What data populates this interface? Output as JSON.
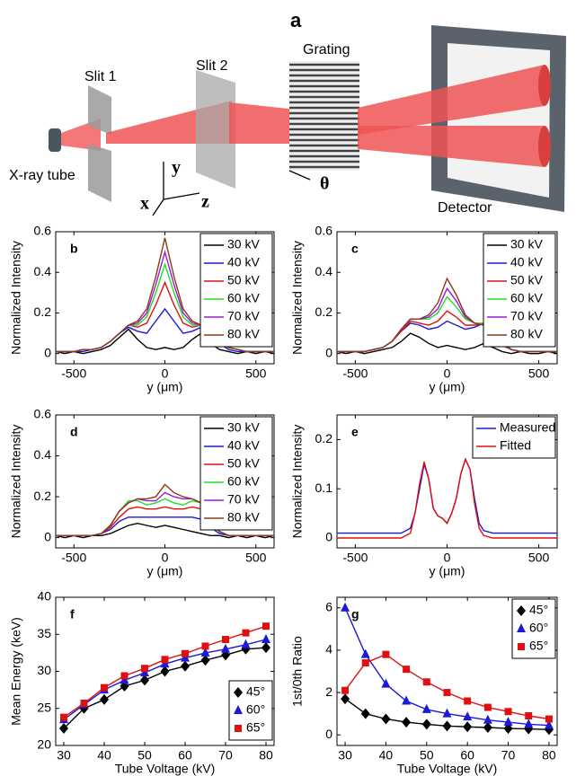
{
  "diagram": {
    "label": "a",
    "slit1": "Slit 1",
    "slit2": "Slit 2",
    "grating": "Grating",
    "tube": "X-ray tube",
    "detector": "Detector",
    "x": "x",
    "y": "y",
    "z": "z",
    "theta": "θ"
  },
  "chart_data": [
    {
      "type": "line",
      "label": "b",
      "xlabel": "y (μm)",
      "ylabel": "Normalized Intensity",
      "legend": "upper right",
      "xlim": [
        -600,
        600
      ],
      "xticks": [
        -500,
        0,
        500
      ],
      "ylim": [
        -0.05,
        0.6
      ],
      "yticks": [
        0,
        0.2,
        0.4,
        0.6
      ],
      "x": [
        -600,
        -550,
        -500,
        -450,
        -400,
        -350,
        -300,
        -250,
        -200,
        -150,
        -100,
        -50,
        0,
        50,
        100,
        150,
        200,
        250,
        300,
        350,
        400,
        450,
        500,
        550,
        600
      ],
      "series": [
        {
          "name": "30 kV",
          "color": "#000000",
          "values": [
            0.01,
            0,
            0.01,
            0,
            0.01,
            0.02,
            0.04,
            0.08,
            0.12,
            0.07,
            0.03,
            0.02,
            0.03,
            0.02,
            0.03,
            0.07,
            0.1,
            0.05,
            0.02,
            0.01,
            0,
            0.01,
            0,
            0.01,
            0
          ]
        },
        {
          "name": "40 kV",
          "color": "#1a1ad6",
          "values": [
            0.01,
            0.01,
            0.01,
            0.01,
            0.02,
            0.03,
            0.06,
            0.1,
            0.13,
            0.11,
            0.1,
            0.16,
            0.22,
            0.16,
            0.1,
            0.11,
            0.13,
            0.09,
            0.05,
            0.02,
            0.01,
            0.01,
            0.01,
            0.01,
            0.01
          ]
        },
        {
          "name": "50 kV",
          "color": "#e01010",
          "values": [
            0.01,
            0.01,
            0.01,
            0.02,
            0.02,
            0.03,
            0.06,
            0.1,
            0.14,
            0.13,
            0.15,
            0.24,
            0.35,
            0.24,
            0.15,
            0.13,
            0.14,
            0.1,
            0.06,
            0.03,
            0.02,
            0.01,
            0.01,
            0.01,
            0.01
          ]
        },
        {
          "name": "60 kV",
          "color": "#20e020",
          "values": [
            0.01,
            0.01,
            0.01,
            0.02,
            0.02,
            0.03,
            0.06,
            0.1,
            0.14,
            0.14,
            0.18,
            0.3,
            0.44,
            0.3,
            0.18,
            0.14,
            0.14,
            0.1,
            0.06,
            0.03,
            0.02,
            0.01,
            0.01,
            0.01,
            0.01
          ]
        },
        {
          "name": "70 kV",
          "color": "#9a1ad6",
          "values": [
            0.01,
            0.01,
            0.01,
            0.02,
            0.02,
            0.03,
            0.06,
            0.1,
            0.14,
            0.15,
            0.2,
            0.34,
            0.5,
            0.34,
            0.2,
            0.15,
            0.14,
            0.1,
            0.06,
            0.03,
            0.02,
            0.01,
            0.01,
            0.01,
            0.01
          ]
        },
        {
          "name": "80 kV",
          "color": "#8b3a1a",
          "values": [
            0.01,
            0.01,
            0.01,
            0.02,
            0.02,
            0.03,
            0.06,
            0.1,
            0.14,
            0.16,
            0.22,
            0.38,
            0.57,
            0.38,
            0.22,
            0.16,
            0.14,
            0.1,
            0.06,
            0.03,
            0.02,
            0.01,
            0.01,
            0.01,
            0.01
          ]
        }
      ]
    },
    {
      "type": "line",
      "label": "c",
      "xlabel": "y (μm)",
      "ylabel": "Normalized Intensity",
      "legend": "upper right",
      "xlim": [
        -600,
        600
      ],
      "xticks": [
        -500,
        0,
        500
      ],
      "ylim": [
        -0.05,
        0.6
      ],
      "yticks": [
        0,
        0.2,
        0.4,
        0.6
      ],
      "x": [
        -600,
        -550,
        -500,
        -450,
        -400,
        -350,
        -300,
        -250,
        -200,
        -150,
        -100,
        -50,
        0,
        50,
        100,
        150,
        200,
        250,
        300,
        350,
        400,
        450,
        500,
        550,
        600
      ],
      "series": [
        {
          "name": "30 kV",
          "color": "#000000",
          "values": [
            0.01,
            0,
            0.01,
            0,
            0.01,
            0.02,
            0.03,
            0.06,
            0.1,
            0.08,
            0.05,
            0.03,
            0.04,
            0.03,
            0.02,
            0.03,
            0.05,
            0.03,
            0.01,
            0,
            0.01,
            0,
            0,
            0.01,
            0
          ]
        },
        {
          "name": "40 kV",
          "color": "#1a1ad6",
          "values": [
            0.01,
            0.01,
            0.01,
            0.01,
            0.02,
            0.03,
            0.06,
            0.11,
            0.15,
            0.14,
            0.12,
            0.13,
            0.16,
            0.14,
            0.12,
            0.13,
            0.15,
            0.12,
            0.06,
            0.02,
            0.01,
            0.01,
            0.01,
            0.01,
            0.01
          ]
        },
        {
          "name": "50 kV",
          "color": "#e01010",
          "values": [
            0.01,
            0.01,
            0.01,
            0.01,
            0.02,
            0.03,
            0.06,
            0.11,
            0.16,
            0.15,
            0.14,
            0.16,
            0.21,
            0.18,
            0.14,
            0.14,
            0.15,
            0.11,
            0.05,
            0.02,
            0.01,
            0.01,
            0.01,
            0.01,
            0.01
          ]
        },
        {
          "name": "60 kV",
          "color": "#20e020",
          "values": [
            0.01,
            0.01,
            0.01,
            0.01,
            0.02,
            0.03,
            0.06,
            0.12,
            0.17,
            0.17,
            0.17,
            0.2,
            0.28,
            0.23,
            0.17,
            0.15,
            0.15,
            0.1,
            0.05,
            0.02,
            0.01,
            0.01,
            0.01,
            0.01,
            0.01
          ]
        },
        {
          "name": "70 kV",
          "color": "#9a1ad6",
          "values": [
            0.01,
            0.01,
            0.01,
            0.01,
            0.02,
            0.03,
            0.06,
            0.12,
            0.17,
            0.17,
            0.18,
            0.22,
            0.32,
            0.26,
            0.18,
            0.15,
            0.14,
            0.1,
            0.05,
            0.02,
            0.01,
            0.01,
            0.01,
            0.01,
            0.01
          ]
        },
        {
          "name": "80 kV",
          "color": "#8b3a1a",
          "values": [
            0.01,
            0.01,
            0.01,
            0.01,
            0.02,
            0.03,
            0.06,
            0.12,
            0.17,
            0.17,
            0.19,
            0.25,
            0.37,
            0.29,
            0.19,
            0.15,
            0.14,
            0.09,
            0.04,
            0.02,
            0.01,
            0.01,
            0.01,
            0.01,
            0.01
          ]
        }
      ]
    },
    {
      "type": "line",
      "label": "d",
      "xlabel": "y (μm)",
      "ylabel": "Normalized Intensity",
      "legend": "upper right",
      "xlim": [
        -600,
        600
      ],
      "xticks": [
        -500,
        0,
        500
      ],
      "ylim": [
        -0.05,
        0.6
      ],
      "yticks": [
        0,
        0.2,
        0.4,
        0.6
      ],
      "x": [
        -600,
        -550,
        -500,
        -450,
        -400,
        -350,
        -300,
        -250,
        -200,
        -150,
        -100,
        -50,
        0,
        50,
        100,
        150,
        200,
        250,
        300,
        350,
        400,
        450,
        500,
        550,
        600
      ],
      "series": [
        {
          "name": "30 kV",
          "color": "#000000",
          "values": [
            0.01,
            0,
            0.01,
            0,
            0.01,
            0.01,
            0.02,
            0.04,
            0.06,
            0.07,
            0.06,
            0.05,
            0.06,
            0.05,
            0.04,
            0.03,
            0.02,
            0.01,
            0.01,
            0,
            0.01,
            0,
            0.01,
            0,
            0.01
          ]
        },
        {
          "name": "40 kV",
          "color": "#1a1ad6",
          "values": [
            0.01,
            0.01,
            0.01,
            0.01,
            0.01,
            0.02,
            0.04,
            0.08,
            0.1,
            0.1,
            0.1,
            0.1,
            0.1,
            0.1,
            0.1,
            0.1,
            0.09,
            0.05,
            0.02,
            0.01,
            0.01,
            0.01,
            0.01,
            0.01,
            0.01
          ]
        },
        {
          "name": "50 kV",
          "color": "#e01010",
          "values": [
            0.01,
            0.01,
            0.01,
            0.01,
            0.01,
            0.02,
            0.05,
            0.1,
            0.14,
            0.15,
            0.14,
            0.14,
            0.15,
            0.14,
            0.14,
            0.15,
            0.14,
            0.07,
            0.03,
            0.01,
            0.01,
            0.01,
            0.01,
            0.01,
            0.01
          ]
        },
        {
          "name": "60 kV",
          "color": "#20e020",
          "values": [
            0.01,
            0.01,
            0.01,
            0.01,
            0.01,
            0.02,
            0.06,
            0.13,
            0.18,
            0.18,
            0.16,
            0.17,
            0.19,
            0.17,
            0.16,
            0.18,
            0.17,
            0.08,
            0.03,
            0.01,
            0.01,
            0.01,
            0.01,
            0.01,
            0.01
          ]
        },
        {
          "name": "70 kV",
          "color": "#9a1ad6",
          "values": [
            0.01,
            0.01,
            0.01,
            0.01,
            0.01,
            0.02,
            0.06,
            0.13,
            0.17,
            0.19,
            0.18,
            0.18,
            0.22,
            0.2,
            0.19,
            0.19,
            0.17,
            0.08,
            0.03,
            0.01,
            0.01,
            0.01,
            0.01,
            0.01,
            0.01
          ]
        },
        {
          "name": "80 kV",
          "color": "#8b3a1a",
          "values": [
            0.01,
            0.01,
            0.01,
            0.01,
            0.01,
            0.02,
            0.06,
            0.13,
            0.17,
            0.19,
            0.19,
            0.2,
            0.26,
            0.22,
            0.2,
            0.19,
            0.17,
            0.08,
            0.03,
            0.01,
            0.01,
            0.01,
            0.01,
            0.01,
            0.01
          ]
        }
      ]
    },
    {
      "type": "line",
      "label": "e",
      "xlabel": "y (μm)",
      "ylabel": "Normalized Intensity",
      "legend": "upper right",
      "xlim": [
        -600,
        600
      ],
      "xticks": [
        -500,
        0,
        500
      ],
      "ylim": [
        -0.02,
        0.25
      ],
      "yticks": [
        0,
        0.1,
        0.2
      ],
      "x": [
        -600,
        -500,
        -400,
        -300,
        -250,
        -200,
        -175,
        -150,
        -125,
        -100,
        -75,
        -50,
        -25,
        0,
        25,
        50,
        75,
        100,
        125,
        150,
        175,
        200,
        250,
        300,
        400,
        500,
        600
      ],
      "series": [
        {
          "name": "Measured",
          "color": "#1a1ad6",
          "values": [
            0.01,
            0.01,
            0.01,
            0.01,
            0.01,
            0.02,
            0.05,
            0.1,
            0.15,
            0.12,
            0.06,
            0.045,
            0.04,
            0.03,
            0.05,
            0.08,
            0.13,
            0.16,
            0.14,
            0.08,
            0.03,
            0.015,
            0.01,
            0.01,
            0.01,
            0.01,
            0.01
          ]
        },
        {
          "name": "Fitted",
          "color": "#e01010",
          "values": [
            0,
            0,
            0,
            0,
            0,
            0.01,
            0.05,
            0.11,
            0.155,
            0.12,
            0.06,
            0.045,
            0.04,
            0.03,
            0.05,
            0.08,
            0.13,
            0.16,
            0.14,
            0.07,
            0.02,
            0.005,
            0,
            0,
            0,
            0,
            0
          ]
        }
      ]
    },
    {
      "type": "marker-line",
      "label": "f",
      "xlabel": "Tube Voltage (kV)",
      "ylabel": "Mean Energy (keV)",
      "legend": "lower right",
      "xlim": [
        28,
        82
      ],
      "xticks": [
        30,
        40,
        50,
        60,
        70,
        80
      ],
      "ylim": [
        20,
        40
      ],
      "yticks": [
        20,
        25,
        30,
        35,
        40
      ],
      "x": [
        30,
        35,
        40,
        45,
        50,
        55,
        60,
        65,
        70,
        75,
        80
      ],
      "series": [
        {
          "name": "45°",
          "color": "#000000",
          "marker": "diamond",
          "values": [
            22.3,
            25,
            26.2,
            28,
            28.8,
            30,
            30.7,
            31.5,
            32.2,
            33,
            33.2
          ]
        },
        {
          "name": "60°",
          "color": "#1a1ad6",
          "marker": "triangle",
          "values": [
            23.5,
            25.5,
            27.5,
            28.8,
            29.8,
            31,
            31.8,
            32.5,
            33,
            33.6,
            34.3
          ]
        },
        {
          "name": "65°",
          "color": "#e01010",
          "marker": "square",
          "values": [
            23.8,
            25.7,
            27.8,
            29.4,
            30.4,
            31.6,
            32.4,
            33.4,
            34.3,
            35.2,
            36.1
          ]
        }
      ]
    },
    {
      "type": "marker-line",
      "label": "g",
      "xlabel": "Tube Voltage (kV)",
      "ylabel": "1st/0th Ratio",
      "legend": "upper right",
      "xlim": [
        28,
        82
      ],
      "xticks": [
        30,
        40,
        50,
        60,
        70,
        80
      ],
      "ylim": [
        -0.5,
        6.5
      ],
      "yticks": [
        0,
        2,
        4,
        6
      ],
      "x": [
        30,
        35,
        40,
        45,
        50,
        55,
        60,
        65,
        70,
        75,
        80
      ],
      "series": [
        {
          "name": "45°",
          "color": "#000000",
          "marker": "diamond",
          "values": [
            1.7,
            1,
            0.75,
            0.6,
            0.5,
            0.42,
            0.38,
            0.35,
            0.3,
            0.28,
            0.25
          ]
        },
        {
          "name": "60°",
          "color": "#1a1ad6",
          "marker": "triangle",
          "values": [
            6,
            3.8,
            2.4,
            1.6,
            1.2,
            1,
            0.85,
            0.7,
            0.6,
            0.5,
            0.45
          ]
        },
        {
          "name": "65°",
          "color": "#e01010",
          "marker": "square",
          "values": [
            2.1,
            3.4,
            3.8,
            3.1,
            2.5,
            2,
            1.6,
            1.3,
            1.1,
            0.9,
            0.75
          ]
        }
      ]
    }
  ]
}
